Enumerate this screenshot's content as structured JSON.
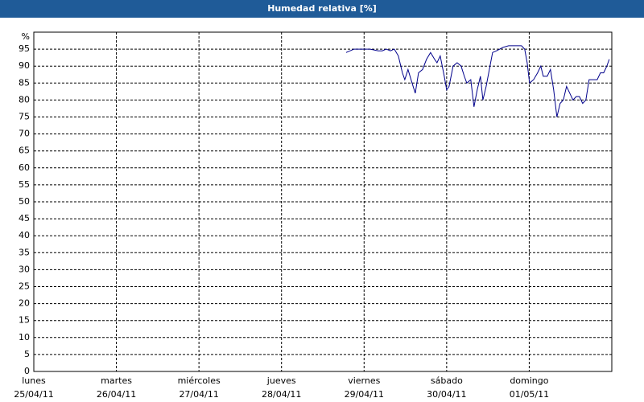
{
  "chart_data": {
    "type": "line",
    "title": "Humedad relativa [%]",
    "ylabel": "%",
    "xlim": [
      0,
      7
    ],
    "ylim": [
      0,
      100
    ],
    "yticks": [
      0,
      5,
      10,
      15,
      20,
      25,
      30,
      35,
      40,
      45,
      50,
      55,
      60,
      65,
      70,
      75,
      80,
      85,
      90,
      95
    ],
    "xticks": [
      {
        "value": 0,
        "label": "lunes",
        "date": "25/04/11"
      },
      {
        "value": 1,
        "label": "martes",
        "date": "26/04/11"
      },
      {
        "value": 2,
        "label": "miércoles",
        "date": "27/04/11"
      },
      {
        "value": 3,
        "label": "jueves",
        "date": "28/04/11"
      },
      {
        "value": 4,
        "label": "viernes",
        "date": "29/04/11"
      },
      {
        "value": 5,
        "label": "sábado",
        "date": "30/04/11"
      },
      {
        "value": 6,
        "label": "domingo",
        "date": "01/05/11"
      }
    ],
    "grid": true,
    "series": [
      {
        "color": "#00008b",
        "x": [
          3.782,
          3.879,
          3.977,
          4.074,
          4.172,
          4.22,
          4.269,
          4.318,
          4.366,
          4.415,
          4.464,
          4.493,
          4.532,
          4.581,
          4.62,
          4.659,
          4.708,
          4.756,
          4.805,
          4.854,
          4.883,
          4.922,
          4.971,
          5.0,
          5.029,
          5.078,
          5.127,
          5.175,
          5.214,
          5.244,
          5.292,
          5.331,
          5.37,
          5.409,
          5.439,
          5.478,
          5.517,
          5.556,
          5.604,
          5.682,
          5.75,
          5.829,
          5.906,
          5.945,
          5.975,
          6.004,
          6.053,
          6.101,
          6.14,
          6.17,
          6.218,
          6.257,
          6.296,
          6.335,
          6.374,
          6.413,
          6.452,
          6.491,
          6.53,
          6.569,
          6.608,
          6.647,
          6.686,
          6.725,
          6.784,
          6.823,
          6.862,
          6.901,
          6.94,
          6.969
        ],
        "values": [
          94,
          95,
          95,
          95,
          94.5,
          94.5,
          95,
          94.5,
          95,
          93,
          88,
          86,
          89,
          85,
          82,
          88,
          89,
          92,
          94,
          92,
          91,
          93,
          87,
          83,
          84,
          90,
          91,
          90,
          87,
          85,
          86,
          78,
          83,
          87,
          80,
          84,
          89,
          94,
          94.5,
          95.5,
          96,
          96,
          96,
          95,
          91,
          85,
          86,
          88,
          90,
          87,
          87,
          89,
          83,
          75,
          79,
          80,
          84,
          82,
          80,
          81,
          81,
          79,
          80,
          86,
          86,
          86,
          88,
          88,
          90,
          92
        ]
      }
    ]
  }
}
